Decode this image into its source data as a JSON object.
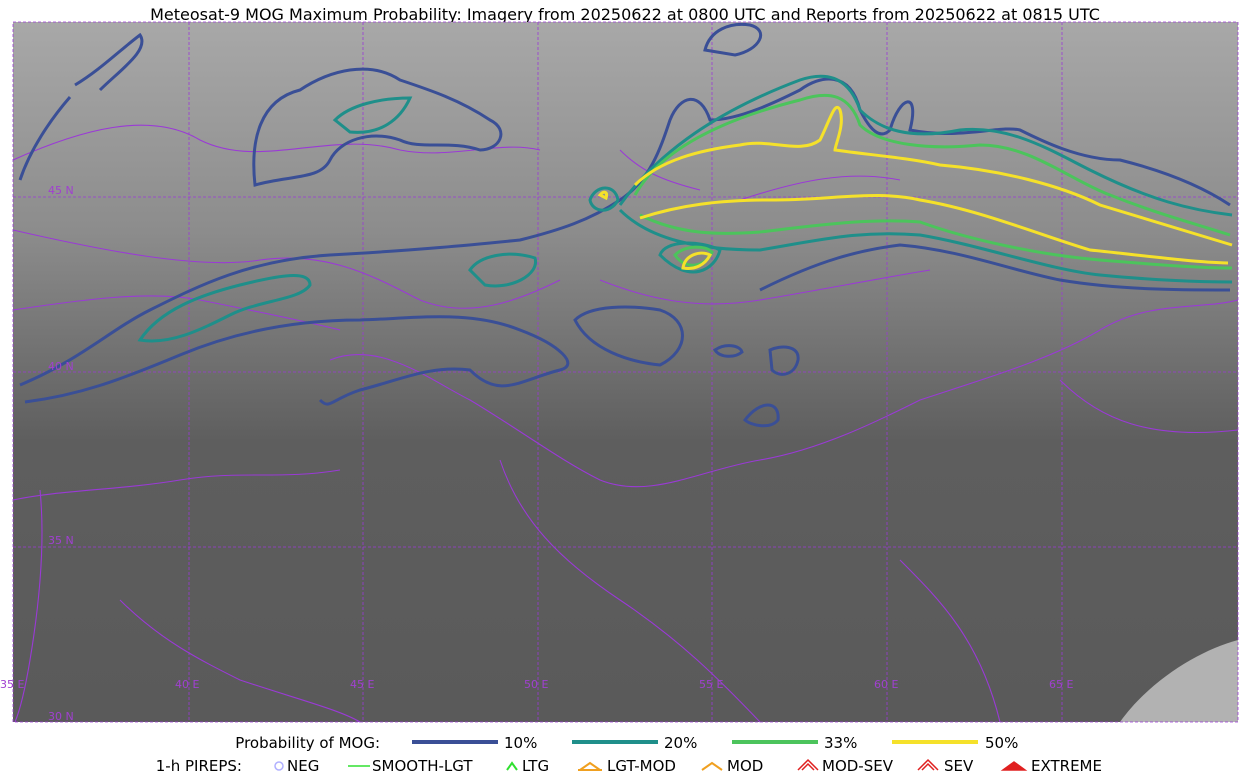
{
  "title": "Meteosat-9 MOG Maximum Probability: Imagery from 20250622 at 0800 UTC and Reports from 20250622 at 0815 UTC",
  "map": {
    "lat_labels": [
      "45 N",
      "40 N",
      "35 N",
      "30 N"
    ],
    "lon_labels": [
      "35 E",
      "40 E",
      "45 E",
      "50 E",
      "55 E",
      "60 E",
      "65 E"
    ]
  },
  "legend": {
    "probability_label": "Probability of MOG:",
    "probability_items": [
      "10%",
      "20%",
      "33%",
      "50%"
    ],
    "pireps_label": "1-h PIREPS:",
    "pireps_items": [
      "NEG",
      "SMOOTH-LGT",
      "LTG",
      "LGT-MOD",
      "MOD",
      "MOD-SEV",
      "SEV",
      "EXTREME"
    ]
  }
}
